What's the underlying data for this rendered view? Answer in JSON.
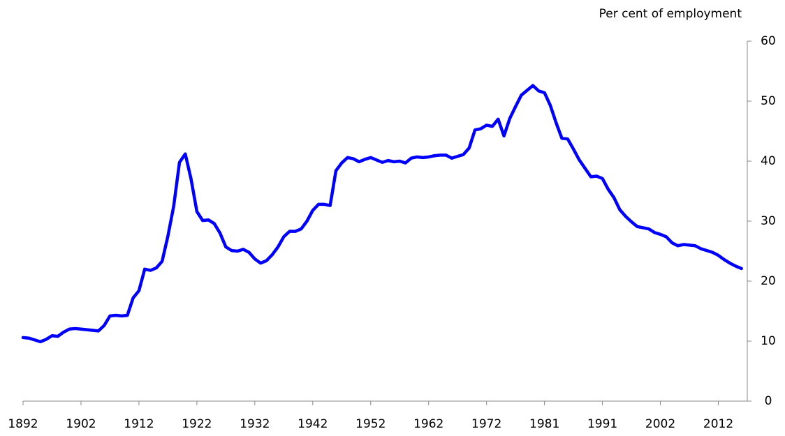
{
  "chart_data": {
    "type": "line",
    "y_label": "Per cent of employment",
    "categories": [
      "1892",
      null,
      null,
      null,
      null,
      null,
      null,
      null,
      null,
      null,
      "1902",
      null,
      null,
      null,
      null,
      null,
      null,
      null,
      null,
      null,
      "1912",
      null,
      null,
      null,
      null,
      null,
      null,
      null,
      null,
      null,
      "1922",
      null,
      null,
      null,
      null,
      null,
      null,
      null,
      null,
      null,
      "1932",
      null,
      null,
      null,
      null,
      null,
      null,
      null,
      null,
      null,
      "1942",
      null,
      null,
      null,
      null,
      null,
      null,
      null,
      null,
      null,
      "1952",
      null,
      null,
      null,
      null,
      null,
      null,
      null,
      null,
      null,
      "1962",
      null,
      null,
      null,
      null,
      null,
      null,
      null,
      null,
      null,
      "1972",
      null,
      null,
      null,
      null,
      null,
      null,
      null,
      null,
      null,
      "1981",
      null,
      null,
      null,
      null,
      null,
      null,
      null,
      null,
      null,
      "1991",
      null,
      null,
      null,
      null,
      null,
      null,
      null,
      null,
      null,
      "2002",
      null,
      null,
      null,
      null,
      null,
      null,
      null,
      null,
      null,
      "2012",
      null,
      null,
      null,
      null
    ],
    "values": [
      10.6,
      10.5,
      10.2,
      9.9,
      10.3,
      10.9,
      10.8,
      11.5,
      12.0,
      12.1,
      12.0,
      11.9,
      11.8,
      11.7,
      12.6,
      14.2,
      14.3,
      14.2,
      14.3,
      17.2,
      18.4,
      22.0,
      21.8,
      22.2,
      23.3,
      27.5,
      32.5,
      39.8,
      41.2,
      37.0,
      31.6,
      30.1,
      30.2,
      29.6,
      28.0,
      25.7,
      25.1,
      25.0,
      25.3,
      24.8,
      23.7,
      23.0,
      23.4,
      24.4,
      25.7,
      27.4,
      28.3,
      28.3,
      28.7,
      30.0,
      31.8,
      32.8,
      32.8,
      32.6,
      38.4,
      39.7,
      40.6,
      40.4,
      39.9,
      40.3,
      40.6,
      40.2,
      39.8,
      40.1,
      39.9,
      40.0,
      39.7,
      40.5,
      40.7,
      40.6,
      40.7,
      40.9,
      41.0,
      41.0,
      40.5,
      40.8,
      41.1,
      42.2,
      45.2,
      45.4,
      46.0,
      45.8,
      47.0,
      44.2,
      47.1,
      49.1,
      51.0,
      51.8,
      52.6,
      51.7,
      51.4,
      49.3,
      46.4,
      43.8,
      43.7,
      42.0,
      40.2,
      38.8,
      37.4,
      37.5,
      37.1,
      35.3,
      33.9,
      31.9,
      30.8,
      29.9,
      29.1,
      28.9,
      28.7,
      28.1,
      27.8,
      27.4,
      26.4,
      25.9,
      26.1,
      26.0,
      25.9,
      25.4,
      25.1,
      24.8,
      24.3,
      23.6,
      23.0,
      22.5,
      22.1
    ],
    "color": "#0000ff",
    "ylim": [
      0,
      60
    ],
    "yticks": [
      0,
      10,
      20,
      30,
      40,
      50,
      60
    ],
    "y_axis_side": "right",
    "grid": false
  }
}
